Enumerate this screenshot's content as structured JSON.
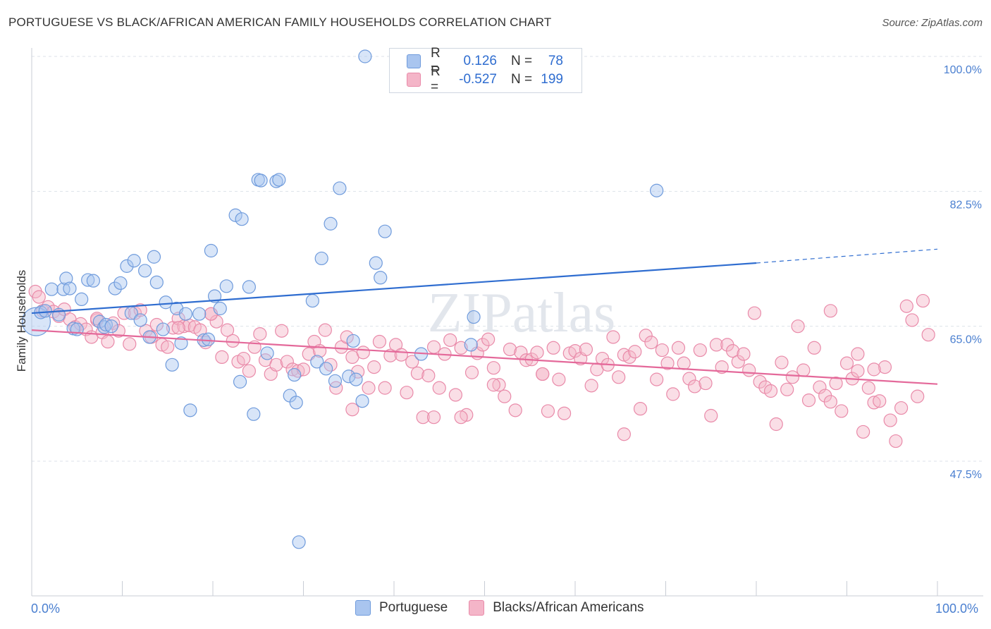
{
  "title": "PORTUGUESE VS BLACK/AFRICAN AMERICAN FAMILY HOUSEHOLDS CORRELATION CHART",
  "source": "Source: ZipAtlas.com",
  "watermark": "ZIPatlas",
  "legend": {
    "rows": [
      {
        "r_label": "R =",
        "r_value": "0.126",
        "n_label": "N =",
        "n_value": "78",
        "color": "#a9c5ef"
      },
      {
        "r_label": "R =",
        "r_value": "-0.527",
        "n_label": "N =",
        "n_value": "199",
        "color": "#f4b5c8"
      }
    ]
  },
  "bottom_legend": [
    "Portuguese",
    "Blacks/African Americans"
  ],
  "colors": {
    "blue_fill": "#a9c5ef",
    "blue_stroke": "#6f9bdc",
    "blue_line": "#2f6dd0",
    "pink_fill": "#f4b5c8",
    "pink_stroke": "#e98aa9",
    "pink_line": "#e4699a",
    "axis_label": "#4a7fd0",
    "grid": "#dde2ea"
  },
  "chart_data": {
    "type": "scatter",
    "title": "PORTUGUESE VS BLACK/AFRICAN AMERICAN FAMILY HOUSEHOLDS CORRELATION CHART",
    "xlabel": "",
    "ylabel": "Family Households",
    "xlim": [
      0,
      100
    ],
    "ylim": [
      30,
      102
    ],
    "x_tick_labels": [
      "0.0%",
      "100.0%"
    ],
    "y_ticks": [
      47.5,
      65.0,
      82.5,
      100.0
    ],
    "y_tick_labels": [
      "47.5%",
      "65.0%",
      "82.5%",
      "100.0%"
    ],
    "grid": true,
    "legend_position": "top-center",
    "series": [
      {
        "name": "Portuguese",
        "trend": {
          "x": [
            0,
            80
          ],
          "y": [
            66.7,
            73.2
          ],
          "dashed_extension": {
            "x": [
              80,
              100
            ],
            "y": [
              73.2,
              75.0
            ]
          }
        },
        "points": [
          [
            0.5,
            65.6,
            "big"
          ],
          [
            1,
            66.8
          ],
          [
            1.5,
            67.0
          ],
          [
            2.2,
            69.8
          ],
          [
            3,
            66.5
          ],
          [
            3.5,
            69.8
          ],
          [
            3.8,
            71.2
          ],
          [
            4.2,
            69.9
          ],
          [
            4.6,
            64.7
          ],
          [
            5,
            64.6
          ],
          [
            5.5,
            68.5
          ],
          [
            6.2,
            71.0
          ],
          [
            6.8,
            70.9
          ],
          [
            7.5,
            65.6
          ],
          [
            8,
            64.9
          ],
          [
            8.2,
            65.2
          ],
          [
            8.8,
            65.0
          ],
          [
            9.2,
            69.9
          ],
          [
            9.8,
            70.6
          ],
          [
            10.5,
            72.8
          ],
          [
            11,
            66.7
          ],
          [
            11.3,
            73.5
          ],
          [
            12,
            65.8
          ],
          [
            12.5,
            72.2
          ],
          [
            13,
            63.6
          ],
          [
            13.5,
            74.0
          ],
          [
            13.8,
            70.7
          ],
          [
            14.5,
            64.6
          ],
          [
            14.8,
            68.1
          ],
          [
            15.5,
            60.0
          ],
          [
            16,
            67.3
          ],
          [
            16.5,
            62.8
          ],
          [
            17,
            66.6
          ],
          [
            17.5,
            54.1
          ],
          [
            18.5,
            66.6
          ],
          [
            19,
            63.2
          ],
          [
            19.5,
            63.3
          ],
          [
            19.8,
            74.8
          ],
          [
            20.2,
            68.9
          ],
          [
            20.8,
            67.3
          ],
          [
            21.5,
            70.2
          ],
          [
            22.5,
            79.4
          ],
          [
            23,
            57.8
          ],
          [
            23.2,
            78.9
          ],
          [
            24,
            70.1
          ],
          [
            24.5,
            53.6
          ],
          [
            25,
            84.0
          ],
          [
            25.3,
            83.9
          ],
          [
            26,
            61.5
          ],
          [
            27,
            83.8
          ],
          [
            27.3,
            84.0
          ],
          [
            28.5,
            56.0
          ],
          [
            29,
            58.7
          ],
          [
            29.2,
            55.1
          ],
          [
            29.5,
            37.0
          ],
          [
            31,
            68.3
          ],
          [
            31.5,
            60.4
          ],
          [
            32,
            73.8
          ],
          [
            32.5,
            59.5
          ],
          [
            33,
            78.3
          ],
          [
            33.5,
            57.9
          ],
          [
            34,
            82.9
          ],
          [
            35,
            58.5
          ],
          [
            35.5,
            63.1
          ],
          [
            35.8,
            58.1
          ],
          [
            36.5,
            55.3
          ],
          [
            36.8,
            100.0
          ],
          [
            38,
            73.2
          ],
          [
            38.5,
            71.3
          ],
          [
            39,
            77.3
          ],
          [
            43,
            61.4
          ],
          [
            48,
            100.0
          ],
          [
            48.5,
            62.6
          ],
          [
            48.8,
            66.2
          ],
          [
            69,
            82.6
          ]
        ]
      },
      {
        "name": "Blacks/African Americans",
        "trend": {
          "x": [
            0,
            100
          ],
          "y": [
            64.5,
            57.5
          ]
        },
        "points": [
          [
            0.4,
            69.5
          ],
          [
            0.8,
            68.8
          ],
          [
            1.2,
            67.0
          ],
          [
            1.8,
            67.5
          ],
          [
            2.4,
            66.9
          ],
          [
            3,
            66.3
          ],
          [
            3.6,
            67.2
          ],
          [
            4.2,
            65.9
          ],
          [
            4.8,
            64.9
          ],
          [
            5.4,
            65.3
          ],
          [
            6,
            64.6
          ],
          [
            6.6,
            63.6
          ],
          [
            7.2,
            65.8
          ],
          [
            7.8,
            64.2
          ],
          [
            8.4,
            63.0
          ],
          [
            9,
            65.4
          ],
          [
            9.6,
            64.4
          ],
          [
            10.2,
            66.7
          ],
          [
            10.8,
            62.7
          ],
          [
            11.4,
            66.7
          ],
          [
            12,
            67.1
          ],
          [
            12.6,
            64.4
          ],
          [
            13.2,
            63.6
          ],
          [
            13.8,
            65.2
          ],
          [
            14.4,
            62.6
          ],
          [
            15,
            62.3
          ],
          [
            15.6,
            64.8
          ],
          [
            16.2,
            66.0
          ],
          [
            16.8,
            65.0
          ],
          [
            17.4,
            65.1
          ],
          [
            18,
            64.9
          ],
          [
            18.6,
            64.5
          ],
          [
            19.2,
            62.9
          ],
          [
            19.8,
            66.6
          ],
          [
            20.4,
            65.6
          ],
          [
            21,
            61.0
          ],
          [
            21.6,
            64.5
          ],
          [
            22.2,
            63.1
          ],
          [
            22.8,
            60.4
          ],
          [
            23.4,
            60.8
          ],
          [
            24,
            59.2
          ],
          [
            24.6,
            62.3
          ],
          [
            25.2,
            64.0
          ],
          [
            25.8,
            60.6
          ],
          [
            26.4,
            58.8
          ],
          [
            27,
            60.0
          ],
          [
            27.6,
            64.4
          ],
          [
            28.2,
            60.4
          ],
          [
            28.8,
            59.4
          ],
          [
            29.4,
            59.2
          ],
          [
            30,
            59.4
          ],
          [
            30.6,
            61.4
          ],
          [
            31.2,
            63.0
          ],
          [
            31.8,
            61.8
          ],
          [
            32.4,
            64.5
          ],
          [
            33,
            60.0
          ],
          [
            33.6,
            57.0
          ],
          [
            34.2,
            62.3
          ],
          [
            34.8,
            63.6
          ],
          [
            35.4,
            61.0
          ],
          [
            36,
            59.1
          ],
          [
            36.6,
            61.6
          ],
          [
            37.2,
            57.0
          ],
          [
            37.8,
            59.7
          ],
          [
            38.4,
            63.0
          ],
          [
            39,
            57.0
          ],
          [
            39.6,
            61.2
          ],
          [
            40.2,
            62.6
          ],
          [
            40.8,
            61.3
          ],
          [
            41.4,
            56.4
          ],
          [
            42,
            60.4
          ],
          [
            42.6,
            58.9
          ],
          [
            43.2,
            53.2
          ],
          [
            43.8,
            58.6
          ],
          [
            44.4,
            62.3
          ],
          [
            45,
            57.0
          ],
          [
            45.6,
            61.4
          ],
          [
            46.2,
            63.2
          ],
          [
            46.8,
            56.1
          ],
          [
            47.4,
            62.2
          ],
          [
            48,
            53.5
          ],
          [
            48.6,
            59.0
          ],
          [
            49.2,
            61.5
          ],
          [
            49.8,
            62.6
          ],
          [
            50.4,
            63.3
          ],
          [
            51,
            59.6
          ],
          [
            51.6,
            57.4
          ],
          [
            52.2,
            55.9
          ],
          [
            52.8,
            62.0
          ],
          [
            53.4,
            54.1
          ],
          [
            54,
            61.6
          ],
          [
            54.6,
            60.6
          ],
          [
            55.2,
            60.7
          ],
          [
            55.8,
            61.6
          ],
          [
            56.4,
            58.8
          ],
          [
            57,
            54.0
          ],
          [
            57.6,
            62.2
          ],
          [
            58.2,
            58.1
          ],
          [
            58.8,
            53.7
          ],
          [
            59.4,
            61.5
          ],
          [
            60,
            61.8
          ],
          [
            60.6,
            60.8
          ],
          [
            61.2,
            62.0
          ],
          [
            61.8,
            57.3
          ],
          [
            62.4,
            59.4
          ],
          [
            63,
            60.8
          ],
          [
            63.6,
            60.0
          ],
          [
            64.2,
            63.6
          ],
          [
            64.8,
            58.4
          ],
          [
            65.4,
            61.3
          ],
          [
            66,
            61.0
          ],
          [
            66.6,
            61.7
          ],
          [
            67.2,
            54.3
          ],
          [
            67.8,
            63.8
          ],
          [
            68.4,
            62.9
          ],
          [
            69,
            58.1
          ],
          [
            69.6,
            61.9
          ],
          [
            70.2,
            60.2
          ],
          [
            70.8,
            56.2
          ],
          [
            71.4,
            62.2
          ],
          [
            72,
            60.2
          ],
          [
            72.6,
            58.2
          ],
          [
            73.2,
            57.2
          ],
          [
            73.8,
            61.9
          ],
          [
            74.4,
            57.6
          ],
          [
            75,
            53.4
          ],
          [
            75.6,
            62.6
          ],
          [
            76.2,
            59.7
          ],
          [
            76.8,
            62.6
          ],
          [
            77.4,
            61.8
          ],
          [
            78,
            60.4
          ],
          [
            78.6,
            61.4
          ],
          [
            79.2,
            59.3
          ],
          [
            79.8,
            66.7
          ],
          [
            80.4,
            57.8
          ],
          [
            81,
            57.1
          ],
          [
            81.6,
            56.6
          ],
          [
            82.2,
            52.3
          ],
          [
            82.8,
            60.3
          ],
          [
            83.4,
            56.8
          ],
          [
            84,
            58.4
          ],
          [
            84.6,
            65.0
          ],
          [
            85.2,
            59.3
          ],
          [
            85.8,
            55.4
          ],
          [
            86.4,
            62.2
          ],
          [
            87,
            57.1
          ],
          [
            87.6,
            56.0
          ],
          [
            88.2,
            55.2
          ],
          [
            88.8,
            57.6
          ],
          [
            89.4,
            54.0
          ],
          [
            90,
            60.2
          ],
          [
            90.6,
            58.2
          ],
          [
            91.2,
            61.4
          ],
          [
            91.8,
            51.3
          ],
          [
            92.4,
            57.0
          ],
          [
            93,
            55.1
          ],
          [
            93.6,
            55.3
          ],
          [
            94.2,
            59.7
          ],
          [
            94.8,
            52.8
          ],
          [
            95.4,
            50.1
          ],
          [
            96,
            54.4
          ],
          [
            96.6,
            67.6
          ],
          [
            97.2,
            65.8
          ],
          [
            97.8,
            55.9
          ],
          [
            98.4,
            68.3
          ],
          [
            99,
            63.9
          ],
          [
            19.8,
            66.6
          ],
          [
            7.2,
            66.0
          ],
          [
            16.2,
            64.8
          ],
          [
            44.4,
            53.2
          ],
          [
            51,
            57.4
          ],
          [
            93,
            59.4
          ],
          [
            88.2,
            67.0
          ],
          [
            91.2,
            59.2
          ],
          [
            35.4,
            54.2
          ],
          [
            65.4,
            51.0
          ],
          [
            47.4,
            53.2
          ],
          [
            56.4,
            58.8
          ]
        ]
      }
    ]
  }
}
